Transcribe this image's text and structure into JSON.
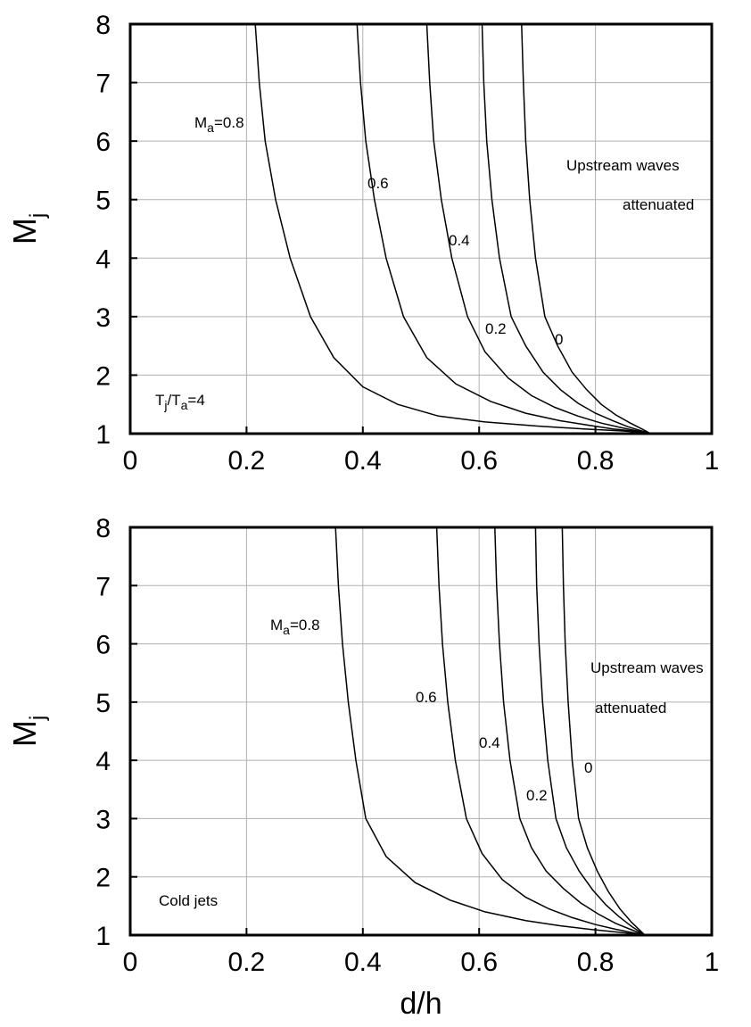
{
  "chart_data": [
    {
      "type": "line",
      "xlabel": "",
      "ylabel": "M",
      "ylabel_sub": "j",
      "xlim": [
        0,
        1
      ],
      "ylim": [
        1,
        8
      ],
      "x_ticks": [
        "0",
        "0.2",
        "0.4",
        "0.6",
        "0.8",
        "1"
      ],
      "y_ticks": [
        "1",
        "2",
        "3",
        "4",
        "5",
        "6",
        "7",
        "8"
      ],
      "grid": true,
      "series": [
        {
          "name": "M_a=0.8",
          "x": [
            0.215,
            0.222,
            0.232,
            0.25,
            0.275,
            0.31,
            0.35,
            0.4,
            0.46,
            0.53,
            0.61,
            0.7,
            0.78,
            0.84,
            0.87,
            0.895
          ],
          "y": [
            8.0,
            7.0,
            6.0,
            5.0,
            4.0,
            3.0,
            2.3,
            1.8,
            1.5,
            1.3,
            1.2,
            1.13,
            1.08,
            1.05,
            1.03,
            1.0
          ]
        },
        {
          "name": "0.6",
          "x": [
            0.39,
            0.396,
            0.405,
            0.42,
            0.44,
            0.47,
            0.51,
            0.56,
            0.62,
            0.68,
            0.74,
            0.79,
            0.83,
            0.86,
            0.895
          ],
          "y": [
            8.0,
            7.0,
            6.0,
            5.0,
            4.0,
            3.0,
            2.3,
            1.85,
            1.55,
            1.35,
            1.22,
            1.14,
            1.08,
            1.05,
            1.0
          ]
        },
        {
          "name": "0.4",
          "x": [
            0.51,
            0.515,
            0.522,
            0.535,
            0.553,
            0.58,
            0.61,
            0.65,
            0.69,
            0.73,
            0.77,
            0.81,
            0.845,
            0.87,
            0.895
          ],
          "y": [
            8.0,
            7.0,
            6.0,
            5.0,
            4.0,
            3.0,
            2.4,
            1.95,
            1.65,
            1.45,
            1.3,
            1.18,
            1.1,
            1.05,
            1.0
          ]
        },
        {
          "name": "0.2",
          "x": [
            0.605,
            0.608,
            0.613,
            0.622,
            0.635,
            0.655,
            0.68,
            0.71,
            0.74,
            0.77,
            0.8,
            0.83,
            0.855,
            0.875,
            0.895
          ],
          "y": [
            8.0,
            7.0,
            6.0,
            5.0,
            4.0,
            3.0,
            2.5,
            2.05,
            1.75,
            1.52,
            1.35,
            1.22,
            1.12,
            1.06,
            1.0
          ]
        },
        {
          "name": "0",
          "x": [
            0.673,
            0.676,
            0.68,
            0.687,
            0.697,
            0.713,
            0.735,
            0.76,
            0.785,
            0.81,
            0.835,
            0.86,
            0.88,
            0.895
          ],
          "y": [
            8.0,
            7.0,
            6.0,
            5.0,
            4.0,
            3.0,
            2.5,
            2.05,
            1.75,
            1.5,
            1.32,
            1.18,
            1.08,
            1.0
          ]
        }
      ],
      "annotations": {
        "ma_pre": "M",
        "ma_sub": "a",
        "ma_post": "=0.8",
        "l06": "0.6",
        "l04": "0.4",
        "l02": "0.2",
        "l0": "0",
        "up1": "Upstream waves",
        "up2": "attenuated",
        "cond_t1": "T",
        "cond_s1": "j",
        "cond_mid": "/T",
        "cond_s2": "a",
        "cond_post": "=4"
      }
    },
    {
      "type": "line",
      "xlabel": "d/h",
      "ylabel": "M",
      "ylabel_sub": "j",
      "xlim": [
        0,
        1
      ],
      "ylim": [
        1,
        8
      ],
      "x_ticks": [
        "0",
        "0.2",
        "0.4",
        "0.6",
        "0.8",
        "1"
      ],
      "y_ticks": [
        "1",
        "2",
        "3",
        "4",
        "5",
        "6",
        "7",
        "8"
      ],
      "grid": true,
      "series": [
        {
          "name": "M_a=0.8",
          "x": [
            0.353,
            0.358,
            0.365,
            0.375,
            0.388,
            0.405,
            0.44,
            0.49,
            0.55,
            0.61,
            0.68,
            0.74,
            0.79,
            0.83,
            0.86,
            0.885
          ],
          "y": [
            8.0,
            7.0,
            6.0,
            5.0,
            4.0,
            3.0,
            2.35,
            1.9,
            1.6,
            1.4,
            1.25,
            1.16,
            1.1,
            1.06,
            1.03,
            1.0
          ]
        },
        {
          "name": "0.6",
          "x": [
            0.527,
            0.531,
            0.537,
            0.546,
            0.559,
            0.578,
            0.605,
            0.64,
            0.68,
            0.72,
            0.76,
            0.8,
            0.835,
            0.86,
            0.885
          ],
          "y": [
            8.0,
            7.0,
            6.0,
            5.0,
            4.0,
            3.0,
            2.4,
            1.95,
            1.65,
            1.45,
            1.3,
            1.18,
            1.1,
            1.05,
            1.0
          ]
        },
        {
          "name": "0.4",
          "x": [
            0.627,
            0.63,
            0.635,
            0.642,
            0.653,
            0.67,
            0.69,
            0.715,
            0.745,
            0.775,
            0.805,
            0.835,
            0.86,
            0.885
          ],
          "y": [
            8.0,
            7.0,
            6.0,
            5.0,
            4.0,
            3.0,
            2.5,
            2.1,
            1.8,
            1.55,
            1.36,
            1.2,
            1.1,
            1.0
          ]
        },
        {
          "name": "0.2",
          "x": [
            0.697,
            0.699,
            0.703,
            0.709,
            0.718,
            0.732,
            0.75,
            0.772,
            0.795,
            0.818,
            0.84,
            0.862,
            0.885
          ],
          "y": [
            8.0,
            7.0,
            6.0,
            5.0,
            4.0,
            3.0,
            2.5,
            2.1,
            1.78,
            1.52,
            1.32,
            1.15,
            1.0
          ]
        },
        {
          "name": "0",
          "x": [
            0.743,
            0.745,
            0.748,
            0.753,
            0.76,
            0.771,
            0.786,
            0.803,
            0.822,
            0.842,
            0.862,
            0.885
          ],
          "y": [
            8.0,
            7.0,
            6.0,
            5.0,
            4.0,
            3.0,
            2.5,
            2.1,
            1.75,
            1.45,
            1.22,
            1.0
          ]
        }
      ],
      "annotations": {
        "ma_pre": "M",
        "ma_sub": "a",
        "ma_post": "=0.8",
        "l06": "0.6",
        "l04": "0.4",
        "l02": "0.2",
        "l0": "0",
        "up1": "Upstream waves",
        "up2": "attenuated",
        "cold": "Cold jets"
      }
    }
  ]
}
